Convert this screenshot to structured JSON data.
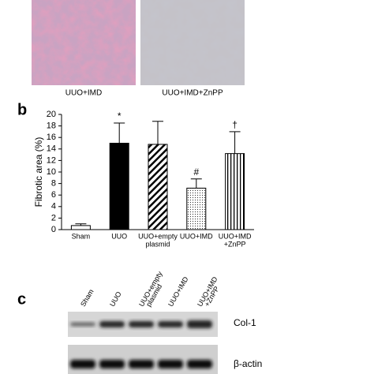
{
  "images": {
    "labels": [
      "UUO+IMD",
      "UUO+IMD+ZnPP"
    ]
  },
  "panel_labels": [
    "b",
    "c"
  ],
  "chart_data": {
    "type": "bar",
    "y_label": "Fibrotic area (%)",
    "categories": [
      [
        "Sham"
      ],
      [
        "UUO"
      ],
      [
        "UUO+empty",
        "plasmid"
      ],
      [
        "UUO+IMD"
      ],
      [
        "UUO+IMD",
        "+ZnPP"
      ]
    ],
    "values": [
      0.7,
      15,
      14.8,
      7.2,
      13.2
    ],
    "errors": [
      0.3,
      3.5,
      4,
      1.6,
      3.8
    ],
    "annotations": [
      "",
      "*",
      "",
      "#",
      "†"
    ],
    "patterns": [
      "none",
      "solid",
      "diagonal",
      "dots",
      "vertical"
    ],
    "ylim": [
      0,
      20
    ],
    "yticks": [
      0,
      2,
      4,
      6,
      8,
      10,
      12,
      14,
      16,
      18,
      20
    ]
  },
  "blot": {
    "lanes": [
      [
        "Sham"
      ],
      [
        "UUO"
      ],
      [
        "UUO+empty",
        "plasmid"
      ],
      [
        "UUO+IMD"
      ],
      [
        "UUO+IMD",
        "+ZnPP"
      ]
    ],
    "rows": [
      "Col-1",
      "β-actin"
    ]
  }
}
